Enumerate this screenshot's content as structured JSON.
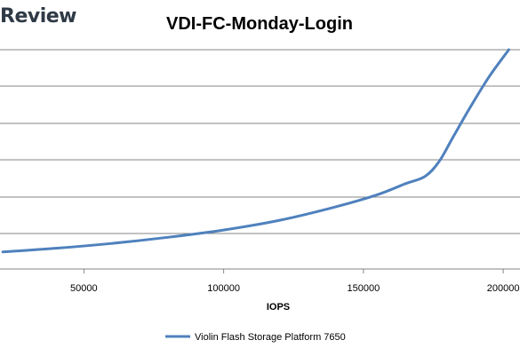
{
  "brand": {
    "text": "Review"
  },
  "chart_data": {
    "type": "line",
    "title": "VDI-FC-Monday-Login",
    "xlabel": "IOPS",
    "ylabel": "",
    "xlim": [
      20000,
      206000
    ],
    "ylim": [
      0,
      9
    ],
    "xticks": [
      50000,
      100000,
      150000,
      200000
    ],
    "grid": true,
    "legend_position": "bottom",
    "series": [
      {
        "name": "Violin Flash Storage Platform 7650",
        "color": "#4f81bd",
        "x": [
          21000,
          40000,
          60000,
          80000,
          100000,
          120000,
          140000,
          155000,
          165000,
          172000,
          177000,
          182000,
          188000,
          195000,
          202000
        ],
        "y": [
          0.7,
          0.85,
          1.05,
          1.3,
          1.6,
          2.0,
          2.55,
          3.05,
          3.5,
          3.8,
          4.4,
          5.4,
          6.6,
          7.9,
          9.0
        ]
      }
    ]
  }
}
